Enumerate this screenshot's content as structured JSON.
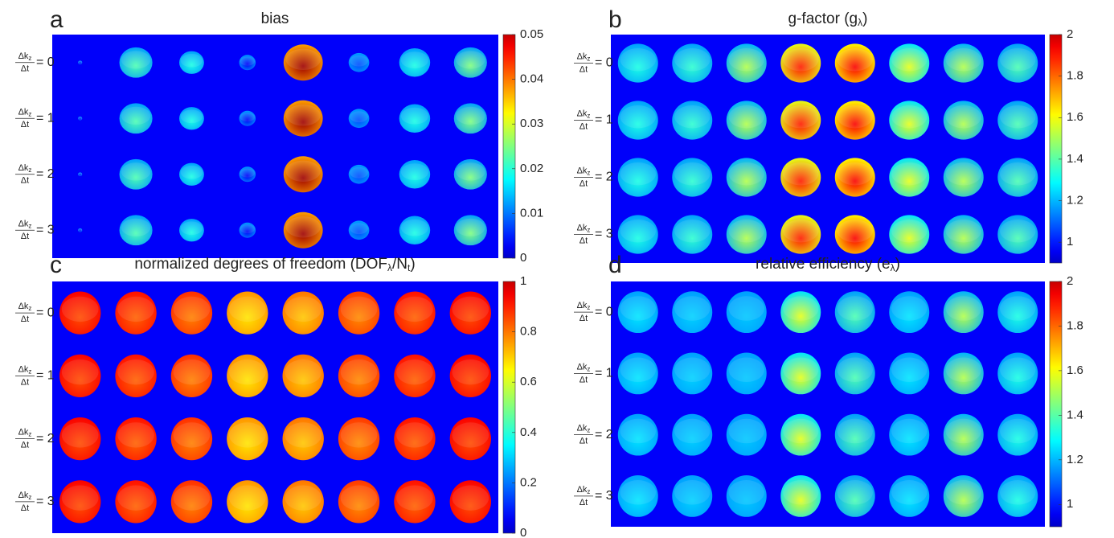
{
  "row_label": {
    "num": "Δk",
    "num_sub": "z",
    "den": "Δt"
  },
  "rows": [
    "= 0",
    "= 1",
    "= 2",
    "= 3"
  ],
  "panels": [
    {
      "letter": "a",
      "title": [
        {
          "text": "bias"
        }
      ],
      "clim": [
        0,
        0.05
      ],
      "cticks": [
        0,
        0.01,
        0.02,
        0.03,
        0.04,
        0.05
      ]
    },
    {
      "letter": "b",
      "title": [
        {
          "text": "g-factor (g"
        },
        {
          "text": "λ",
          "sub": true
        },
        {
          "text": ")"
        }
      ],
      "clim": [
        0.9,
        2
      ],
      "cticks": [
        1,
        1.2,
        1.4,
        1.6,
        1.8,
        2
      ]
    },
    {
      "letter": "c",
      "title": [
        {
          "text": "normalized degrees of freedom (DOF"
        },
        {
          "text": "λ",
          "sub": true
        },
        {
          "text": "/N"
        },
        {
          "text": "t",
          "sub": true
        },
        {
          "text": ")"
        }
      ],
      "clim": [
        0,
        1
      ],
      "cticks": [
        0,
        0.2,
        0.4,
        0.6,
        0.8,
        1
      ]
    },
    {
      "letter": "d",
      "title": [
        {
          "text": "relative efficiency (e"
        },
        {
          "text": "λ",
          "sub": true
        },
        {
          "text": ")"
        }
      ],
      "clim": [
        0.9,
        2
      ],
      "cticks": [
        1,
        1.2,
        1.4,
        1.6,
        1.8,
        2
      ]
    }
  ]
}
